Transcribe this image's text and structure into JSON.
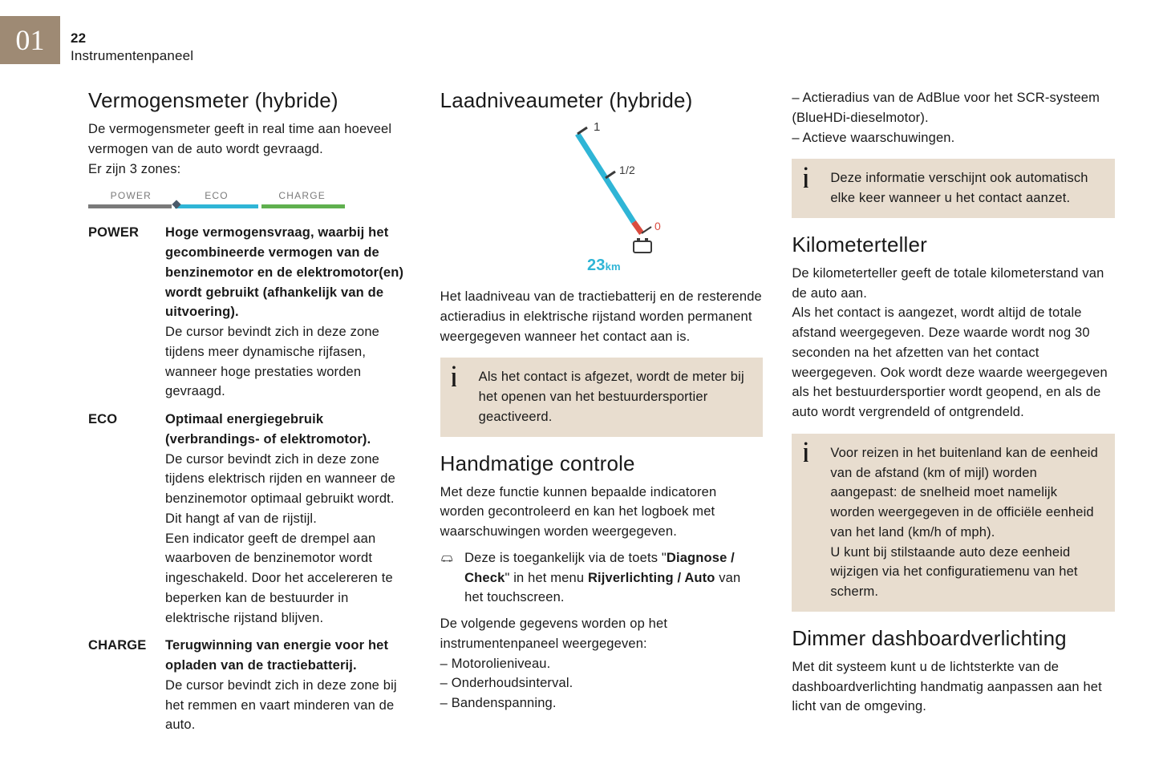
{
  "chapter": "01",
  "page_number": "22",
  "page_title": "Instrumentenpaneel",
  "col1": {
    "h1": "Vermogensmeter (hybride)",
    "intro1": "De vermogensmeter geeft in real time aan hoeveel vermogen van de auto wordt gevraagd.",
    "intro2": "Er zijn 3 zones:",
    "zone_bar": {
      "labels": [
        "POWER",
        "ECO",
        "CHARGE"
      ],
      "colors": [
        "#7a7a7a",
        "#2fb5d6",
        "#5fb04e"
      ],
      "dot_color": "#4a5a6a"
    },
    "defs": [
      {
        "term": "POWER",
        "bold": "Hoge vermogensvraag, waarbij het gecombineerde vermogen van de benzinemotor en de elektromotor(en) wordt gebruikt (afhankelijk van de uitvoering).",
        "text": "De cursor bevindt zich in deze zone tijdens meer dynamische rijfasen, wanneer hoge prestaties worden gevraagd."
      },
      {
        "term": "ECO",
        "bold": "Optimaal energiegebruik (verbrandings- of elektromotor).",
        "text": "De cursor bevindt zich in deze zone tijdens elektrisch rijden en wanneer de benzinemotor optimaal gebruikt wordt. Dit hangt af van de rijstijl.\nEen indicator geeft de drempel aan waarboven de benzinemotor wordt ingeschakeld. Door het accelereren te beperken kan de bestuurder in elektrische rijstand blijven."
      },
      {
        "term": "CHARGE",
        "bold": "Terugwinning van energie voor het opladen van de tractiebatterij.",
        "text": "De cursor bevindt zich in deze zone bij het remmen en vaart minderen van de auto."
      }
    ]
  },
  "col2": {
    "h1": "Laadniveaumeter (hybride)",
    "gauge": {
      "tick_labels": [
        "1",
        "1/2",
        "0"
      ],
      "tick_color": "#3a3a3a",
      "bar_color": "#2fb5d6",
      "empty_color": "#d94b3f",
      "range_value": "23",
      "range_unit": "km",
      "range_color": "#2fb5d6"
    },
    "p1": "Het laadniveau van de tractiebatterij en de resterende actieradius in elektrische rijstand worden permanent weergegeven wanneer het contact aan is.",
    "note1": "Als het contact is afgezet, wordt de meter bij het openen van het bestuurdersportier geactiveerd.",
    "h2": "Handmatige controle",
    "p2": "Met deze functie kunnen bepaalde indicatoren worden gecontroleerd en kan het logboek met waarschuwingen worden weergegeven.",
    "car_row_pre": "Deze is toegankelijk via de toets \"",
    "car_row_bold1": "Diagnose / Check",
    "car_row_mid": "\" in het menu ",
    "car_row_bold2": "Rijverlichting / Auto",
    "car_row_post": " van het touchscreen.",
    "p3": "De volgende gegevens worden op het instrumentenpaneel weergegeven:",
    "list1": [
      "Motorolieniveau.",
      "Onderhoudsinterval.",
      "Bandenspanning."
    ]
  },
  "col3": {
    "list_top": [
      "Actieradius van de AdBlue voor het SCR-systeem (BlueHDi-dieselmotor).",
      "Actieve waarschuwingen."
    ],
    "note1": "Deze informatie verschijnt ook automatisch elke keer wanneer u het contact aanzet.",
    "h1": "Kilometerteller",
    "p1": "De kilometerteller geeft de totale kilometerstand van de auto aan.",
    "p2": "Als het contact is aangezet, wordt altijd de totale afstand weergegeven. Deze waarde wordt nog 30 seconden na het afzetten van het contact weergegeven. Ook wordt deze waarde weergegeven als het bestuurdersportier wordt geopend, en als de auto wordt vergrendeld of ontgrendeld.",
    "note2": "Voor reizen in het buitenland kan de eenheid van de afstand (km of mijl) worden aangepast: de snelheid moet namelijk worden weergegeven in de officiële eenheid van het land (km/h of mph).\nU kunt bij stilstaande auto deze eenheid wijzigen via het configuratiemenu van het scherm.",
    "h2": "Dimmer dashboardverlichting",
    "p3": "Met dit systeem kunt u de lichtsterkte van de dashboardverlichting handmatig aanpassen aan het licht van de omgeving."
  },
  "colors": {
    "tab_bg": "#9e8a74",
    "note_bg": "#e8ddcf",
    "text": "#1a1a1a"
  }
}
